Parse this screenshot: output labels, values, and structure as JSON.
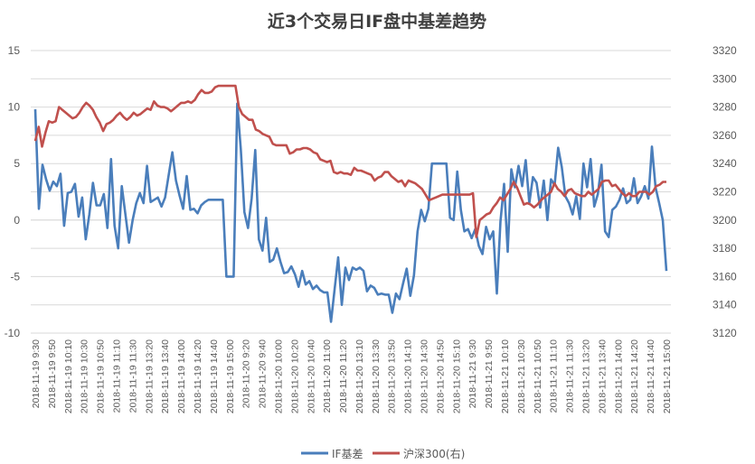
{
  "chart_data": {
    "type": "line",
    "title": "近3个交易日IF盘中基差趋势",
    "grid": "horizontal",
    "legend": "bottom",
    "y_left": {
      "min": -10,
      "max": 15,
      "step": 5,
      "ticks": [
        "15",
        "10",
        "5",
        "0",
        "-5",
        "-10"
      ]
    },
    "y_right": {
      "min": 3120,
      "max": 3320,
      "step": 20,
      "ticks": [
        "3320",
        "3300",
        "3280",
        "3260",
        "3240",
        "3220",
        "3200",
        "3180",
        "3160",
        "3140",
        "3120"
      ]
    },
    "x_tick_labels": [
      "2018-11-19 9:30",
      "2018-11-19 9:50",
      "2018-11-19 10:10",
      "2018-11-19 10:30",
      "2018-11-19 10:50",
      "2018-11-19 11:10",
      "2018-11-19 11:30",
      "2018-11-19 13:20",
      "2018-11-19 13:40",
      "2018-11-19 14:00",
      "2018-11-19 14:20",
      "2018-11-19 14:40",
      "2018-11-19 15:00",
      "2018-11-20 9:20",
      "2018-11-20 9:40",
      "2018-11-20 10:00",
      "2018-11-20 10:20",
      "2018-11-20 10:40",
      "2018-11-20 11:00",
      "2018-11-20 11:20",
      "2018-11-20 13:10",
      "2018-11-20 13:30",
      "2018-11-20 13:50",
      "2018-11-20 14:10",
      "2018-11-20 14:30",
      "2018-11-20 14:50",
      "2018-11-20 15:10",
      "2018-11-21 9:30",
      "2018-11-21 9:50",
      "2018-11-21 10:10",
      "2018-11-21 10:30",
      "2018-11-21 10:50",
      "2018-11-21 11:10",
      "2018-11-21 11:30",
      "2018-11-21 13:20",
      "2018-11-21 13:40",
      "2018-11-21 14:00",
      "2018-11-21 14:20",
      "2018-11-21 14:40",
      "2018-11-21 15:00"
    ],
    "series": [
      {
        "name": "IF基差",
        "axis": "left",
        "color": "#4a7ebb",
        "values": [
          9.8,
          1,
          4.9,
          3.6,
          2.6,
          3.4,
          3,
          4.1,
          -0.5,
          2.4,
          2.5,
          3.2,
          0.3,
          2,
          -1.7,
          0.5,
          3.3,
          1.3,
          1.3,
          2.3,
          -0.7,
          5.4,
          -0.5,
          -2.5,
          3,
          0.5,
          -2,
          0,
          1.5,
          2.4,
          1.5,
          4.8,
          1.6,
          1.8,
          2,
          1.2,
          2,
          4,
          6,
          3.5,
          2.2,
          1,
          3.9,
          0.9,
          1,
          0.6,
          1.3,
          1.6,
          1.8,
          1.8,
          1.8,
          1.8,
          1.8,
          -5,
          -5,
          -5,
          10.3,
          6.3,
          0.7,
          -0.7,
          1.9,
          6.2,
          -1.7,
          -2.7,
          0.2,
          -3.7,
          -3.5,
          -2.5,
          -3.7,
          -4.7,
          -4.6,
          -4.1,
          -4.8,
          -5.9,
          -4.5,
          -5.7,
          -5.4,
          -6.1,
          -5.8,
          -6.2,
          -6.4,
          -6.4,
          -9,
          -6.1,
          -3.3,
          -7.5,
          -4.2,
          -5.3,
          -4.2,
          -4.4,
          -4.2,
          -4.5,
          -6.3,
          -5.8,
          -6,
          -6.6,
          -6.5,
          -6.6,
          -6.6,
          -8.2,
          -6.5,
          -7,
          -5.6,
          -4.3,
          -6.7,
          -4.9,
          -1,
          0.9,
          -0.1,
          1,
          5,
          5,
          5,
          5,
          5,
          0.2,
          0,
          4.3,
          0.9,
          -1,
          -0.8,
          -1.6,
          -0.8,
          -2.3,
          -3,
          -0.6,
          -1.7,
          -1,
          -6.5,
          -0.1,
          3.2,
          -2.8,
          4.5,
          2.9,
          4.8,
          3,
          5.3,
          1.5,
          3.8,
          3.3,
          1.1,
          3.5,
          0,
          3.6,
          3.1,
          6.4,
          4.7,
          2.1,
          1.5,
          0.5,
          2.1,
          0.1,
          5,
          2.9,
          5.4,
          1.2,
          2.3,
          4.9,
          -1,
          -1.5,
          0.9,
          1.2,
          1.8,
          2.8,
          1.5,
          1.8,
          3.7,
          1.5,
          2.1,
          3,
          1.9,
          6.5,
          2.9,
          1.5,
          0,
          -4.5
        ]
      },
      {
        "name": "沪深300(右)",
        "axis": "right",
        "color": "#c0504d",
        "values": [
          3256,
          3266,
          3252,
          3262,
          3270,
          3269,
          3270,
          3280,
          3278,
          3276,
          3274,
          3272,
          3273,
          3276,
          3280,
          3283,
          3281,
          3278,
          3273,
          3269,
          3263,
          3268,
          3269,
          3271,
          3274,
          3276,
          3273,
          3271,
          3273,
          3276,
          3274,
          3275,
          3277,
          3279,
          3278,
          3284,
          3281,
          3280,
          3280,
          3279,
          3277,
          3279,
          3281,
          3283,
          3283,
          3284,
          3283,
          3285,
          3289,
          3292,
          3290,
          3290,
          3291,
          3294,
          3295,
          3295,
          3295,
          3295,
          3295,
          3295,
          3280,
          3275,
          3273,
          3271,
          3271,
          3264,
          3263,
          3261,
          3260,
          3259,
          3254,
          3253,
          3253,
          3253,
          3253,
          3247,
          3248,
          3250,
          3250,
          3251,
          3251,
          3250,
          3248,
          3247,
          3243,
          3242,
          3241,
          3242,
          3234,
          3233,
          3234,
          3233,
          3233,
          3232,
          3237,
          3235,
          3235,
          3234,
          3233,
          3232,
          3228,
          3230,
          3231,
          3234,
          3234,
          3231,
          3229,
          3227,
          3228,
          3224,
          3228,
          3227,
          3226,
          3224,
          3222,
          3218,
          3214,
          3215,
          3216,
          3217,
          3218,
          3218,
          3218,
          3218,
          3218,
          3218,
          3218,
          3218,
          3218,
          3219,
          3188,
          3200,
          3202,
          3204,
          3205,
          3209,
          3212,
          3216,
          3214,
          3218,
          3222,
          3227,
          3223,
          3217,
          3211,
          3212,
          3211,
          3209,
          3211,
          3214,
          3216,
          3218,
          3220,
          3226,
          3222,
          3220,
          3217,
          3221,
          3222,
          3219,
          3218,
          3217,
          3217,
          3220,
          3218,
          3220,
          3222,
          3227,
          3228,
          3228,
          3224,
          3225,
          3222,
          3219,
          3217,
          3219,
          3217,
          3217,
          3220,
          3220,
          3220,
          3218,
          3220,
          3224,
          3225,
          3227,
          3227
        ]
      }
    ]
  }
}
